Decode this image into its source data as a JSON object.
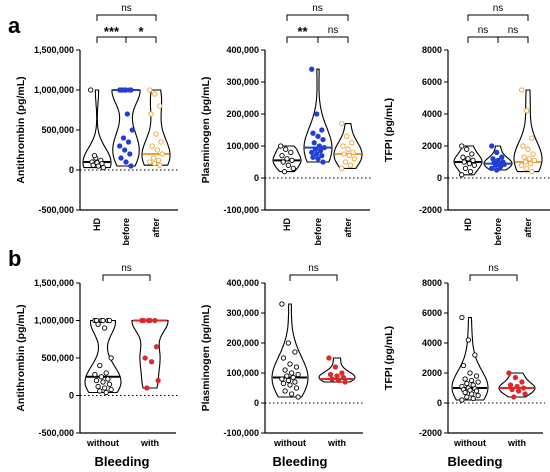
{
  "panel_labels": [
    "a",
    "b"
  ],
  "colors": {
    "HD": "#000000",
    "before": "#1f3fd6",
    "after": "#f0a030",
    "without": "#000000",
    "with": "#e02828"
  },
  "x_title": "Bleeding",
  "chart_data": [
    {
      "type": "violin",
      "row": "a",
      "ylabel": "Antithrombin (pg/mL)",
      "ylim": [
        -500000,
        1500000
      ],
      "yticks": [
        -500000,
        0,
        500000,
        1000000,
        1500000
      ],
      "ytick_labels": [
        "-500,000",
        "0",
        "500,000",
        "1,000,000",
        "1,500,000"
      ],
      "categories": [
        "HD",
        "before",
        "after"
      ],
      "medians": [
        100000,
        1000000,
        200000
      ],
      "points": [
        [
          1000000,
          150000,
          120000,
          100000,
          90000,
          80000,
          60000,
          50000,
          30000,
          180000
        ],
        [
          1000000,
          1000000,
          1000000,
          1000000,
          1000000,
          1000000,
          1000000,
          700000,
          500000,
          400000,
          350000,
          300000,
          250000,
          200000,
          150000,
          100000,
          50000
        ],
        [
          1000000,
          950000,
          800000,
          700000,
          450000,
          350000,
          300000,
          250000,
          200000,
          150000,
          120000,
          100000,
          80000,
          60000
        ]
      ],
      "significance": [
        {
          "pair": [
            0,
            1
          ],
          "label": "***",
          "level": 0
        },
        {
          "pair": [
            1,
            2
          ],
          "label": "*",
          "level": 0
        },
        {
          "pair": [
            0,
            2
          ],
          "label": "ns",
          "level": 1
        }
      ]
    },
    {
      "type": "violin",
      "row": "a",
      "ylabel": "Plasminogen (pg/mL)",
      "ylim": [
        -100000,
        400000
      ],
      "yticks": [
        -100000,
        0,
        100000,
        200000,
        300000,
        400000
      ],
      "ytick_labels": [
        "-100,000",
        "0",
        "100,000",
        "200,000",
        "300,000",
        "400,000"
      ],
      "categories": [
        "HD",
        "before",
        "after"
      ],
      "medians": [
        55000,
        95000,
        75000
      ],
      "points": [
        [
          100000,
          90000,
          80000,
          70000,
          60000,
          55000,
          50000,
          40000,
          30000,
          20000
        ],
        [
          340000,
          200000,
          150000,
          140000,
          130000,
          120000,
          110000,
          100000,
          95000,
          90000,
          85000,
          80000,
          75000,
          70000,
          65000,
          60000,
          50000
        ],
        [
          170000,
          130000,
          110000,
          100000,
          90000,
          80000,
          75000,
          70000,
          60000,
          50000,
          40000,
          30000
        ]
      ],
      "significance": [
        {
          "pair": [
            0,
            1
          ],
          "label": "**",
          "level": 0
        },
        {
          "pair": [
            1,
            2
          ],
          "label": "ns",
          "level": 0
        },
        {
          "pair": [
            0,
            2
          ],
          "label": "ns",
          "level": 1
        }
      ]
    },
    {
      "type": "violin",
      "row": "a",
      "ylabel": "TFPI (pg/mL)",
      "ylim": [
        -2000,
        8000
      ],
      "yticks": [
        -2000,
        0,
        2000,
        4000,
        6000,
        8000
      ],
      "ytick_labels": [
        "-2000",
        "0",
        "2000",
        "4000",
        "6000",
        "8000"
      ],
      "categories": [
        "HD",
        "before",
        "after"
      ],
      "medians": [
        1000,
        900,
        1000
      ],
      "points": [
        [
          2000,
          1800,
          1500,
          1300,
          1200,
          1100,
          1000,
          900,
          800,
          600,
          400,
          200
        ],
        [
          2000,
          1600,
          1300,
          1200,
          1100,
          1000,
          950,
          900,
          850,
          800,
          700,
          600,
          500
        ],
        [
          5500,
          4200,
          2500,
          2000,
          1800,
          1500,
          1300,
          1200,
          1100,
          1000,
          900,
          800,
          600,
          400
        ]
      ],
      "significance": [
        {
          "pair": [
            0,
            1
          ],
          "label": "ns",
          "level": 0
        },
        {
          "pair": [
            1,
            2
          ],
          "label": "ns",
          "level": 0
        },
        {
          "pair": [
            0,
            2
          ],
          "label": "ns",
          "level": 1
        }
      ]
    },
    {
      "type": "violin",
      "row": "b",
      "ylabel": "Antithrombin (pg/mL)",
      "ylim": [
        -500000,
        1500000
      ],
      "yticks": [
        -500000,
        0,
        500000,
        1000000,
        1500000
      ],
      "ytick_labels": [
        "-500,000",
        "0",
        "500,000",
        "1,000,000",
        "1,500,000"
      ],
      "categories": [
        "without",
        "with"
      ],
      "medians": [
        250000,
        1000000
      ],
      "points": [
        [
          1000000,
          1000000,
          1000000,
          1000000,
          1000000,
          1000000,
          950000,
          900000,
          500000,
          400000,
          300000,
          280000,
          250000,
          220000,
          200000,
          180000,
          150000,
          120000,
          100000,
          80000,
          60000,
          40000
        ],
        [
          1000000,
          1000000,
          1000000,
          1000000,
          1000000,
          650000,
          500000,
          450000,
          200000,
          100000
        ]
      ],
      "significance": [
        {
          "pair": [
            0,
            1
          ],
          "label": "ns",
          "level": 0
        }
      ]
    },
    {
      "type": "violin",
      "row": "b",
      "ylabel": "Plasminogen (pg/mL)",
      "ylim": [
        -100000,
        400000
      ],
      "yticks": [
        -100000,
        0,
        100000,
        200000,
        300000,
        400000
      ],
      "ytick_labels": [
        "-100,000",
        "0",
        "100,000",
        "200,000",
        "300,000",
        "400,000"
      ],
      "categories": [
        "without",
        "with"
      ],
      "medians": [
        85000,
        80000
      ],
      "points": [
        [
          330000,
          200000,
          170000,
          150000,
          130000,
          120000,
          110000,
          100000,
          95000,
          90000,
          85000,
          80000,
          75000,
          70000,
          65000,
          60000,
          50000,
          40000,
          30000,
          20000
        ],
        [
          150000,
          120000,
          100000,
          95000,
          90000,
          85000,
          80000,
          75000,
          70000
        ]
      ],
      "significance": [
        {
          "pair": [
            0,
            1
          ],
          "label": "ns",
          "level": 0
        }
      ]
    },
    {
      "type": "violin",
      "row": "b",
      "ylabel": "TFPI (pg/mL)",
      "ylim": [
        -2000,
        8000
      ],
      "yticks": [
        -2000,
        0,
        2000,
        4000,
        6000,
        8000
      ],
      "ytick_labels": [
        "-2000",
        "0",
        "2000",
        "4000",
        "6000",
        "8000"
      ],
      "categories": [
        "without",
        "with"
      ],
      "medians": [
        1000,
        1000
      ],
      "points": [
        [
          5700,
          4200,
          3200,
          2500,
          2000,
          1800,
          1600,
          1500,
          1400,
          1300,
          1200,
          1100,
          1000,
          950,
          900,
          850,
          800,
          700,
          600,
          500,
          400,
          300,
          200
        ],
        [
          2000,
          1700,
          1400,
          1200,
          1100,
          1000,
          900,
          800,
          600,
          400
        ]
      ],
      "significance": [
        {
          "pair": [
            0,
            1
          ],
          "label": "ns",
          "level": 0
        }
      ]
    }
  ]
}
